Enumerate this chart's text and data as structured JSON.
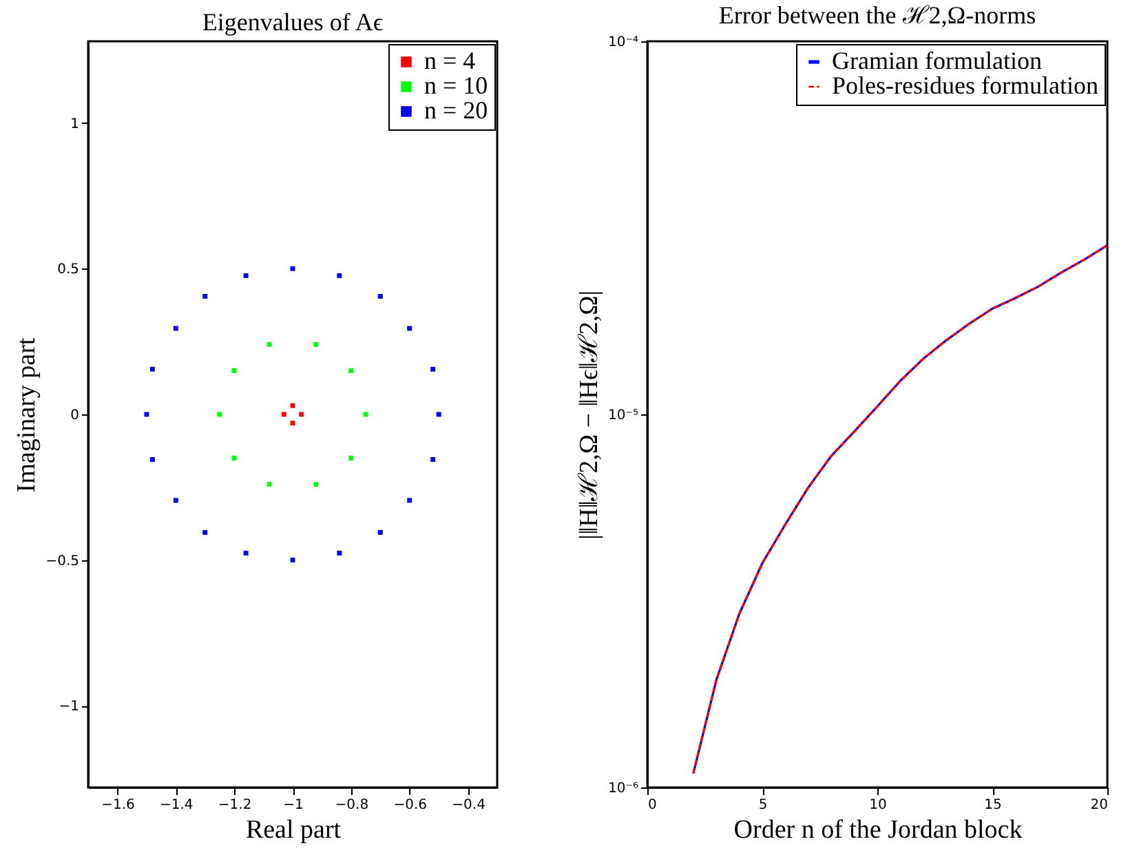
{
  "chart_data": [
    {
      "type": "scatter",
      "title": "Eigenvalues of Aϵ",
      "xlabel": "Real part",
      "ylabel": "Imaginary part",
      "xlim": [
        -1.7,
        -0.3
      ],
      "xticks": [
        -1.6,
        -1.4,
        -1.2,
        -1,
        -0.8,
        -0.6,
        -0.4
      ],
      "ylim": [
        -1.28,
        1.28
      ],
      "yticks": [
        -1,
        -0.5,
        0,
        0.5,
        1
      ],
      "grid": false,
      "legend": "top right",
      "marker": "square",
      "series": [
        {
          "name": "n = 4",
          "color": "#ff0000",
          "x": [
            -0.97,
            -1.0,
            -1.03,
            -1.0
          ],
          "values": [
            0,
            0.03,
            0,
            -0.03
          ]
        },
        {
          "name": "n = 10",
          "color": "#00ff00",
          "x": [
            -0.75,
            -0.8,
            -0.92,
            -1.08,
            -1.2,
            -1.25,
            -1.2,
            -1.08,
            -0.92,
            -0.8
          ],
          "values": [
            0,
            0.15,
            0.24,
            0.24,
            0.15,
            0,
            -0.15,
            -0.24,
            -0.24,
            -0.15
          ]
        },
        {
          "name": "n = 20",
          "color": "#0000ff",
          "x": [
            -0.5,
            -0.52,
            -0.6,
            -0.7,
            -0.84,
            -1.0,
            -1.16,
            -1.3,
            -1.4,
            -1.48,
            -1.5,
            -1.48,
            -1.4,
            -1.3,
            -1.16,
            -1.0,
            -0.84,
            -0.7,
            -0.6,
            -0.52
          ],
          "values": [
            0,
            0.155,
            0.295,
            0.405,
            0.476,
            0.5,
            0.476,
            0.405,
            0.295,
            0.155,
            0,
            -0.155,
            -0.295,
            -0.405,
            -0.476,
            -0.5,
            -0.476,
            -0.405,
            -0.295,
            -0.155
          ]
        }
      ]
    },
    {
      "type": "line",
      "title": "Error between the ℋ2,Ω-norms",
      "xlabel": "Order n of the Jordan block",
      "ylabel": "|‖H‖ℋ2,Ω − ‖Hϵ‖ℋ2,Ω|",
      "xlim": [
        0,
        20
      ],
      "xticks": [
        0,
        5,
        10,
        15,
        20
      ],
      "ylim": [
        1e-06,
        0.0001
      ],
      "yticks": [
        {
          "value": 1e-06,
          "label": "10⁻⁶"
        },
        {
          "value": 1e-05,
          "label": "10⁻⁵"
        },
        {
          "value": 0.0001,
          "label": "10⁻⁴"
        }
      ],
      "log": "y",
      "grid": false,
      "legend": "top",
      "marker": "none",
      "x": [
        2,
        3,
        4,
        5,
        6,
        7,
        8,
        9,
        10,
        11,
        12,
        13,
        14,
        15,
        16,
        17,
        18,
        19,
        20
      ],
      "series": [
        {
          "name": "Gramian formulation",
          "color": "#0000ff",
          "line_style": "solid",
          "values": [
            1.09e-06,
            1.94e-06,
            2.92e-06,
            3.99e-06,
            5.07e-06,
            6.37e-06,
            7.74e-06,
            9e-06,
            1.05e-05,
            1.23e-05,
            1.41e-05,
            1.58e-05,
            1.75e-05,
            1.92e-05,
            2.05e-05,
            2.2e-05,
            2.4e-05,
            2.6e-05,
            2.84e-05
          ]
        },
        {
          "name": "Poles-residues formulation",
          "color": "#ff0000",
          "line_style": "dashed",
          "values": [
            1.09e-06,
            1.94e-06,
            2.92e-06,
            3.99e-06,
            5.07e-06,
            6.37e-06,
            7.74e-06,
            9e-06,
            1.05e-05,
            1.23e-05,
            1.41e-05,
            1.58e-05,
            1.75e-05,
            1.92e-05,
            2.05e-05,
            2.2e-05,
            2.4e-05,
            2.6e-05,
            2.84e-05
          ]
        }
      ]
    }
  ]
}
